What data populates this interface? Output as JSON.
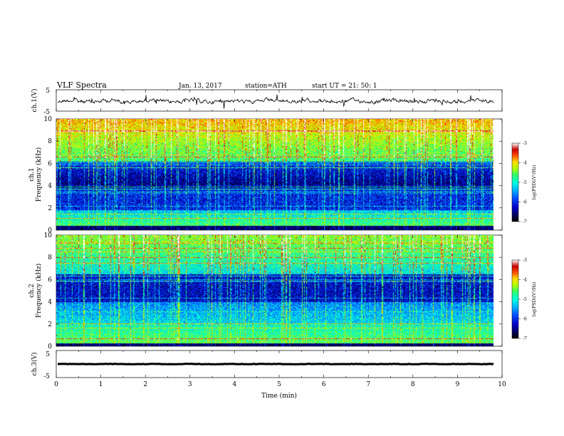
{
  "header": {
    "title": "VLF  Spectra",
    "date": "Jan. 13, 2017",
    "station": "station=ATH",
    "start_ut": "start  UT  =    21: 50: 1"
  },
  "chart_data": [
    {
      "type": "line",
      "id": "ch1-waveform",
      "ylabel": "ch.1(V)",
      "ylim": [
        -5,
        5
      ],
      "y_ticks": [
        "5",
        "-5"
      ],
      "x_range": [
        0,
        10
      ]
    },
    {
      "type": "heatmap",
      "id": "ch1-spectrogram",
      "ylabel": "ch.1\nFrequency (kHz)",
      "ylim": [
        0,
        10
      ],
      "y_ticks": [
        "0",
        "2",
        "4",
        "6",
        "8",
        "10"
      ],
      "x_range": [
        0,
        9.85
      ],
      "colorbar": {
        "label": "log(PSD)(V²/Hz)",
        "range": [
          -7,
          -3
        ],
        "ticks": [
          "-3",
          "-4",
          "-5",
          "-6",
          "-7"
        ]
      }
    },
    {
      "type": "heatmap",
      "id": "ch2-spectrogram",
      "ylabel": "ch.2\nFrequency (kHz)",
      "ylim": [
        0,
        10
      ],
      "y_ticks": [
        "0",
        "2",
        "4",
        "6",
        "8",
        "10"
      ],
      "x_range": [
        0,
        9.85
      ],
      "colorbar": {
        "label": "log(PSD)(V²/Hz)",
        "range": [
          -7,
          -3
        ],
        "ticks": [
          "-3",
          "-4",
          "-5",
          "-6",
          "-7"
        ]
      }
    },
    {
      "type": "line",
      "id": "ch3-waveform",
      "ylabel": "ch.3(V)",
      "ylim": [
        -5,
        5
      ],
      "y_ticks": [
        "5",
        "-5"
      ],
      "xlabel": "Time (min)",
      "x_ticks": [
        "0",
        "1",
        "2",
        "3",
        "4",
        "5",
        "6",
        "7",
        "8",
        "9",
        "10"
      ],
      "x_range": [
        0,
        10
      ]
    }
  ],
  "colors": {
    "axis": "#000000",
    "trace": "#000000",
    "background": "#ffffff",
    "colormap": [
      "#000000",
      "#00005a",
      "#0000c8",
      "#0050ff",
      "#00b4ff",
      "#00ffdc",
      "#32ff64",
      "#b4ff00",
      "#ffdc00",
      "#ff5000",
      "#c80000",
      "#ffffff"
    ]
  }
}
